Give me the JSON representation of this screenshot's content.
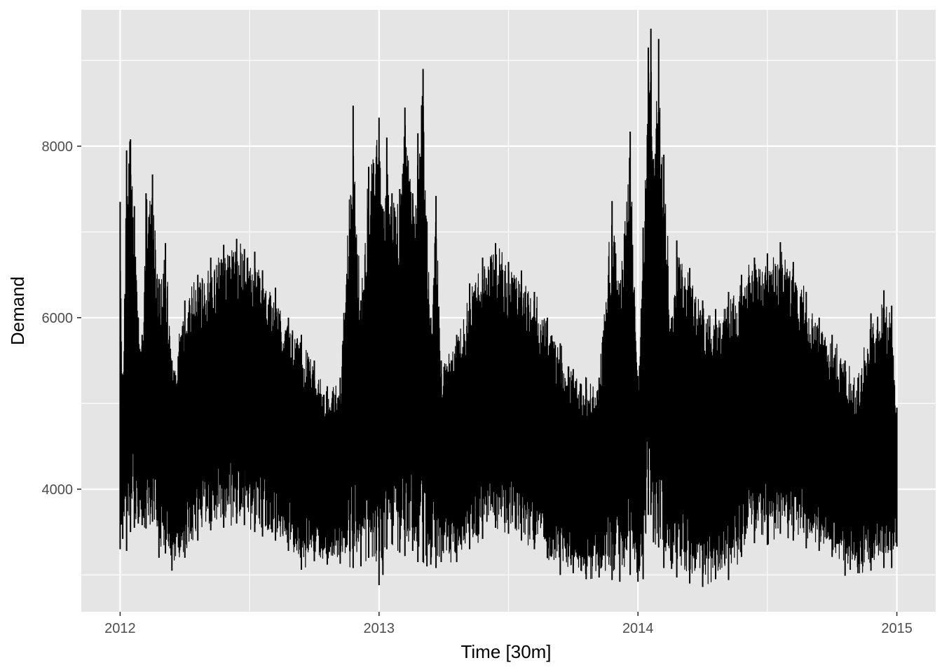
{
  "chart_data": {
    "type": "line",
    "title": "",
    "xlabel": "Time [30m]",
    "ylabel": "Demand",
    "xlim": [
      2011.85,
      3015.15
    ],
    "x_ticks": [
      {
        "value": 2012,
        "label": "2012"
      },
      {
        "value": 2013,
        "label": "2013"
      },
      {
        "value": 2014,
        "label": "2014"
      },
      {
        "value": 2015,
        "label": "2015"
      }
    ],
    "ylim": [
      2570,
      9590
    ],
    "y_ticks": [
      {
        "value": 4000,
        "label": "4000"
      },
      {
        "value": 6000,
        "label": "6000"
      },
      {
        "value": 8000,
        "label": "8000"
      }
    ],
    "y_minor_ticks": [
      3000,
      5000,
      7000,
      9000
    ],
    "grid": true,
    "legend": "none",
    "colors": {
      "panel": "#e5e5e5",
      "grid": "#ffffff",
      "line": "#000000"
    },
    "series": [
      {
        "x": [
          2012.0,
          2012.01,
          2012.025,
          2012.04,
          2012.055,
          2012.07,
          2012.085,
          2012.1,
          2012.125,
          2012.15,
          2012.175,
          2012.2,
          2012.25,
          2012.3,
          2012.35,
          2012.4,
          2012.45,
          2012.48,
          2012.52,
          2012.55,
          2012.6,
          2012.65,
          2012.7,
          2012.75,
          2012.8,
          2012.85,
          2012.9,
          2012.93,
          2012.96,
          2013.0,
          2013.015,
          2013.03,
          2013.05,
          2013.08,
          2013.1,
          2013.13,
          2013.15,
          2013.17,
          2013.185,
          2013.2,
          2013.22,
          2013.24,
          2013.3,
          2013.35,
          2013.4,
          2013.45,
          2013.5,
          2013.55,
          2013.6,
          2013.65,
          2013.7,
          2013.75,
          2013.8,
          2013.85,
          2013.9,
          2013.93,
          2013.97,
          2014.0,
          2014.02,
          2014.04,
          2014.05,
          2014.06,
          2014.08,
          2014.1,
          2014.13,
          2014.15,
          2014.2,
          2014.25,
          2014.3,
          2014.35,
          2014.4,
          2014.45,
          2014.5,
          2014.55,
          2014.6,
          2014.65,
          2014.7,
          2014.75,
          2014.8,
          2014.85,
          2014.9,
          2014.95,
          2014.98,
          2015.0
        ],
        "y_max": [
          7350,
          5100,
          7950,
          8080,
          7300,
          6000,
          5800,
          7450,
          7670,
          6450,
          6870,
          5500,
          6200,
          6500,
          6700,
          6850,
          6920,
          6800,
          6770,
          6550,
          6350,
          6000,
          5800,
          5500,
          5200,
          5300,
          8470,
          6200,
          7760,
          8330,
          7270,
          8100,
          7450,
          7500,
          8450,
          7450,
          8150,
          8900,
          7120,
          6000,
          7420,
          5500,
          5800,
          6400,
          6700,
          6870,
          6650,
          6550,
          6300,
          6000,
          5700,
          5400,
          5300,
          5300,
          7360,
          6400,
          8170,
          5320,
          7050,
          9150,
          9370,
          7850,
          9250,
          7900,
          6000,
          6900,
          6580,
          6200,
          6100,
          6300,
          6500,
          6700,
          6750,
          6880,
          6650,
          6300,
          6000,
          5800,
          5500,
          5300,
          6050,
          6320,
          6140,
          4950
        ],
        "y_min": [
          3300,
          3420,
          3280,
          3500,
          3550,
          3600,
          3580,
          3540,
          3620,
          3200,
          3250,
          3050,
          3200,
          3400,
          3520,
          3550,
          3600,
          3580,
          3500,
          3450,
          3400,
          3280,
          3060,
          3160,
          3120,
          3130,
          3080,
          3100,
          3200,
          2880,
          3000,
          3300,
          3360,
          3260,
          3220,
          3280,
          3150,
          3150,
          3100,
          3120,
          3080,
          3150,
          3150,
          3300,
          3420,
          3550,
          3480,
          3400,
          3300,
          3200,
          3000,
          3020,
          2950,
          2970,
          2940,
          2920,
          3000,
          2920,
          2950,
          3700,
          3700,
          3380,
          3320,
          3080,
          3070,
          2970,
          2900,
          2860,
          2950,
          2940,
          3210,
          3370,
          3350,
          3480,
          3400,
          3310,
          3280,
          3210,
          2990,
          3020,
          3050,
          3080,
          3080,
          3330
        ]
      }
    ]
  }
}
